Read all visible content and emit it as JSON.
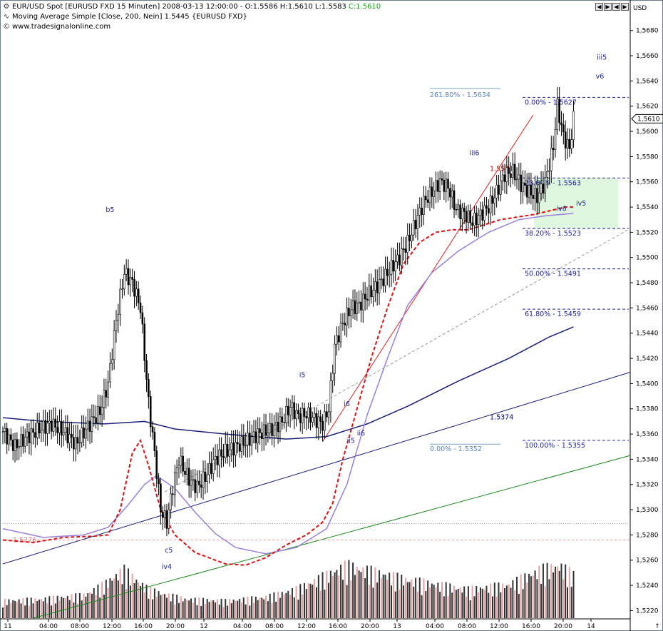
{
  "header": {
    "line1": "EUR/USD Spot [EURUSD FXD  15 Minuten] 2008-03-13 12:00:00 - O:1.5586 H:1.5610 L:1.5583",
    "last_close": "C:1.5610",
    "line2": "Moving Average Simple [Close, 200, Nein] 1.5445 {EURUSD FXD}",
    "line3": "www.tradesignalonline.com",
    "line1_icon": "settings-icon",
    "line2_icon": "indicator-icon",
    "line3_icon": "copyright-icon"
  },
  "window_buttons": [
    "◀",
    "▶",
    "◀",
    "▶"
  ],
  "chart_data": {
    "type": "candlestick",
    "symbol": "EUR/USD Spot",
    "currency_label": "USD",
    "y_ticks": [
      "1,5680",
      "1,5660",
      "1,5640",
      "1,5620",
      "1,5600",
      "1,5580",
      "1,5560",
      "1,5540",
      "1,5520",
      "1,5500",
      "1,5480",
      "1,5460",
      "1,5440",
      "1,5420",
      "1,5400",
      "1,5380",
      "1,5360",
      "1,5340",
      "1,5320",
      "1,5300",
      "1,5280",
      "1,5260",
      "1,5240",
      "1,5220"
    ],
    "ylim": [
      1.5214,
      1.5694
    ],
    "x_ticks": [
      "11",
      "04:00",
      "08:00",
      "12:00",
      "16:00",
      "20:00",
      "12",
      "04:00",
      "08:00",
      "12:00",
      "16:00",
      "20:00",
      "13",
      "04:00",
      "08:00",
      "12:00",
      "16:00",
      "20:00",
      "14"
    ],
    "current_price_label": "1,5610",
    "close_path": [
      [
        0,
        1.5362
      ],
      [
        6,
        1.535
      ],
      [
        12,
        1.5358
      ],
      [
        18,
        1.5364
      ],
      [
        24,
        1.5368
      ],
      [
        30,
        1.5362
      ],
      [
        36,
        1.5352
      ],
      [
        42,
        1.5366
      ],
      [
        48,
        1.5378
      ],
      [
        52,
        1.54
      ],
      [
        56,
        1.545
      ],
      [
        60,
        1.5488
      ],
      [
        64,
        1.548
      ],
      [
        68,
        1.546
      ],
      [
        72,
        1.5385
      ],
      [
        75,
        1.5345
      ],
      [
        78,
        1.53
      ],
      [
        81,
        1.529
      ],
      [
        84,
        1.5318
      ],
      [
        87,
        1.534
      ],
      [
        90,
        1.533
      ],
      [
        93,
        1.5322
      ],
      [
        96,
        1.5318
      ],
      [
        100,
        1.5326
      ],
      [
        105,
        1.534
      ],
      [
        110,
        1.5346
      ],
      [
        115,
        1.535
      ],
      [
        120,
        1.5354
      ],
      [
        126,
        1.536
      ],
      [
        132,
        1.5363
      ],
      [
        138,
        1.537
      ],
      [
        142,
        1.5382
      ],
      [
        146,
        1.5374
      ],
      [
        150,
        1.5376
      ],
      [
        154,
        1.5372
      ],
      [
        158,
        1.5368
      ],
      [
        161,
        1.538
      ],
      [
        164,
        1.543
      ],
      [
        168,
        1.5448
      ],
      [
        172,
        1.546
      ],
      [
        176,
        1.5462
      ],
      [
        180,
        1.547
      ],
      [
        184,
        1.5476
      ],
      [
        188,
        1.5483
      ],
      [
        192,
        1.5492
      ],
      [
        196,
        1.55
      ],
      [
        200,
        1.5512
      ],
      [
        204,
        1.5528
      ],
      [
        208,
        1.5544
      ],
      [
        212,
        1.5552
      ],
      [
        216,
        1.556
      ],
      [
        220,
        1.5556
      ],
      [
        224,
        1.5538
      ],
      [
        228,
        1.5535
      ],
      [
        232,
        1.5528
      ],
      [
        236,
        1.5534
      ],
      [
        240,
        1.554
      ],
      [
        244,
        1.5552
      ],
      [
        248,
        1.5566
      ],
      [
        252,
        1.5568
      ],
      [
        256,
        1.5558
      ],
      [
        260,
        1.5552
      ],
      [
        264,
        1.5548
      ],
      [
        268,
        1.556
      ],
      [
        272,
        1.5588
      ],
      [
        274,
        1.562
      ],
      [
        277,
        1.5596
      ],
      [
        280,
        1.5586
      ],
      [
        282,
        1.561
      ]
    ],
    "volume_profile": [
      [
        0,
        0.18
      ],
      [
        20,
        0.2
      ],
      [
        40,
        0.24
      ],
      [
        50,
        0.35
      ],
      [
        56,
        0.45
      ],
      [
        60,
        0.5
      ],
      [
        66,
        0.4
      ],
      [
        72,
        0.3
      ],
      [
        80,
        0.25
      ],
      [
        90,
        0.2
      ],
      [
        110,
        0.18
      ],
      [
        130,
        0.22
      ],
      [
        145,
        0.3
      ],
      [
        160,
        0.45
      ],
      [
        170,
        0.55
      ],
      [
        180,
        0.5
      ],
      [
        190,
        0.45
      ],
      [
        200,
        0.4
      ],
      [
        215,
        0.35
      ],
      [
        230,
        0.3
      ],
      [
        250,
        0.35
      ],
      [
        265,
        0.5
      ],
      [
        275,
        0.55
      ],
      [
        282,
        0.45
      ]
    ],
    "series": [
      {
        "name": "Moving Average Simple [Close, 200, Nein]",
        "color": "#1a1f7a",
        "values": [
          [
            0,
            1.5373
          ],
          [
            20,
            1.537
          ],
          [
            50,
            1.5368
          ],
          [
            70,
            1.537
          ],
          [
            85,
            1.5364
          ],
          [
            110,
            1.536
          ],
          [
            140,
            1.5356
          ],
          [
            160,
            1.5358
          ],
          [
            180,
            1.5368
          ],
          [
            200,
            1.5382
          ],
          [
            225,
            1.5402
          ],
          [
            250,
            1.542
          ],
          [
            270,
            1.5437
          ],
          [
            282,
            1.5445
          ]
        ]
      },
      {
        "color": "#9a7fdc",
        "values": [
          [
            0,
            1.5285
          ],
          [
            20,
            1.5278
          ],
          [
            40,
            1.528
          ],
          [
            52,
            1.5286
          ],
          [
            62,
            1.5304
          ],
          [
            70,
            1.532
          ],
          [
            76,
            1.5327
          ],
          [
            85,
            1.5317
          ],
          [
            95,
            1.5298
          ],
          [
            105,
            1.5281
          ],
          [
            115,
            1.527
          ],
          [
            130,
            1.5265
          ],
          [
            145,
            1.527
          ],
          [
            160,
            1.5285
          ],
          [
            170,
            1.532
          ],
          [
            180,
            1.5375
          ],
          [
            190,
            1.542
          ],
          [
            200,
            1.5462
          ],
          [
            212,
            1.5488
          ],
          [
            225,
            1.5505
          ],
          [
            240,
            1.552
          ],
          [
            255,
            1.553
          ],
          [
            268,
            1.5533
          ],
          [
            282,
            1.5535
          ]
        ]
      },
      {
        "color": "#e01010",
        "dashed": true,
        "values": [
          [
            0,
            1.5276
          ],
          [
            15,
            1.5274
          ],
          [
            30,
            1.5278
          ],
          [
            45,
            1.5279
          ],
          [
            52,
            1.528
          ],
          [
            58,
            1.53
          ],
          [
            64,
            1.5345
          ],
          [
            68,
            1.5355
          ],
          [
            72,
            1.5335
          ],
          [
            78,
            1.53
          ],
          [
            85,
            1.528
          ],
          [
            95,
            1.5266
          ],
          [
            110,
            1.5257
          ],
          [
            120,
            1.5256
          ],
          [
            130,
            1.5262
          ],
          [
            140,
            1.5272
          ],
          [
            150,
            1.528
          ],
          [
            158,
            1.529
          ],
          [
            163,
            1.5305
          ],
          [
            168,
            1.534
          ],
          [
            175,
            1.538
          ],
          [
            182,
            1.542
          ],
          [
            190,
            1.546
          ],
          [
            198,
            1.5495
          ],
          [
            206,
            1.5512
          ],
          [
            214,
            1.552
          ],
          [
            222,
            1.5522
          ],
          [
            230,
            1.5522
          ],
          [
            238,
            1.5526
          ],
          [
            246,
            1.553
          ],
          [
            254,
            1.5532
          ],
          [
            262,
            1.5534
          ],
          [
            270,
            1.5537
          ],
          [
            278,
            1.554
          ],
          [
            282,
            1.554
          ]
        ]
      }
    ],
    "trend_lines": [
      {
        "color": "#1a1f7a",
        "from": [
          0,
          1.5257
        ],
        "to": [
          310,
          1.5409
        ]
      },
      {
        "color": "#1a8a1a",
        "from": [
          15,
          1.5214
        ],
        "to": [
          310,
          1.5343
        ]
      },
      {
        "color": "#e02020",
        "from": [
          158,
          1.5354
        ],
        "to": [
          262,
          1.5613
        ]
      },
      {
        "color": "#999999",
        "dashed": true,
        "from": [
          80,
          1.5314
        ],
        "to": [
          310,
          1.5523
        ]
      }
    ],
    "fib_levels": [
      {
        "label": "0.00% - 1.5627",
        "value": 1.5627
      },
      {
        "label": "23.60% - 1.5563",
        "value": 1.5563
      },
      {
        "label": "38.20% - 1.5523",
        "value": 1.5523
      },
      {
        "label": "50.00% - 1.5491",
        "value": 1.5491
      },
      {
        "label": "61.80% - 1.5459",
        "value": 1.5459
      },
      {
        "label": "100.00% - 1.5355",
        "value": 1.5355
      }
    ],
    "fib_extension": [
      {
        "label": "261.80% - 1.5634",
        "value": 1.5634
      },
      {
        "label": "0.00% - 1.5352",
        "value": 1.5352
      }
    ],
    "price_labels": [
      {
        "label": "1.5571",
        "value": 1.5571,
        "color": "#c01010"
      },
      {
        "label": "1.5374",
        "value": 1.5374,
        "color": "#000080"
      },
      {
        "label": "1.5276",
        "value": 1.5276,
        "color": "#d08080"
      }
    ],
    "wave_labels": [
      {
        "label": "b5",
        "x": 53,
        "y": 1.5536
      },
      {
        "label": "c5",
        "x": 82,
        "y": 1.5266
      },
      {
        "label": "iv4",
        "x": 81,
        "y": 1.5253
      },
      {
        "label": "i5",
        "x": 148,
        "y": 1.5405
      },
      {
        "label": "ii5",
        "x": 172,
        "y": 1.5353
      },
      {
        "label": "i6",
        "x": 170,
        "y": 1.5382
      },
      {
        "label": "ii6",
        "x": 177,
        "y": 1.5359
      },
      {
        "label": "iii6",
        "x": 233,
        "y": 1.5581
      },
      {
        "label": "iv6",
        "x": 276,
        "y": 1.5537
      },
      {
        "label": "iii5",
        "x": 296,
        "y": 1.5657
      },
      {
        "label": "v6",
        "x": 295,
        "y": 1.5642
      },
      {
        "label": "iv5",
        "x": 350,
        "y": 1.5544
      }
    ],
    "target_zone": {
      "label": "iv5",
      "from": 1.5563,
      "to": 1.5523
    },
    "grid": false,
    "colors": {
      "up": "#000000",
      "down": "#000000",
      "volume": "#333333",
      "volume_light": "#e8a0a0",
      "background": "#ffffff"
    }
  }
}
